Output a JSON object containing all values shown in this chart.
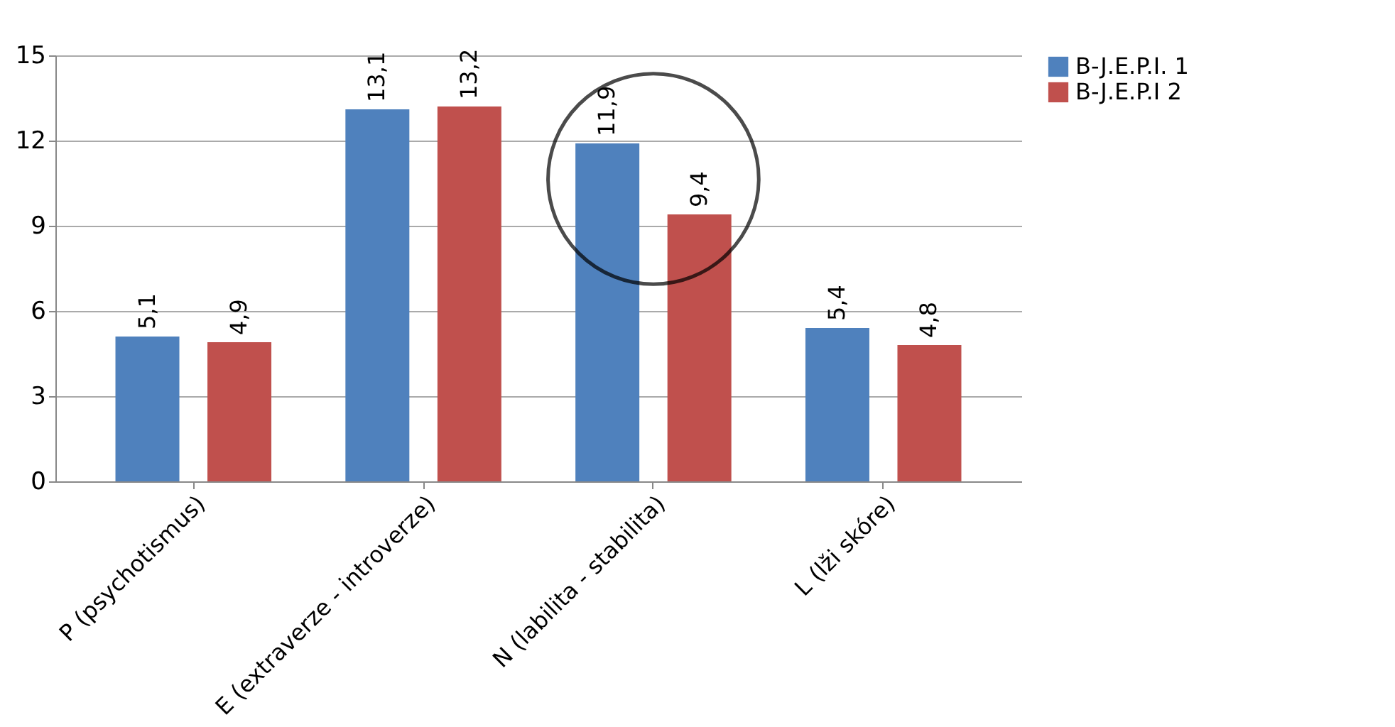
{
  "chart_data": {
    "type": "bar",
    "categories": [
      "P (psychotismus)",
      "E (extraverze - introverze)",
      "N (labilita - stabilita)",
      "L (lži skóre)"
    ],
    "series": [
      {
        "name": "B-J.E.P.I. 1",
        "color": "#4f81bd",
        "values": [
          5.1,
          13.1,
          11.9,
          5.4
        ],
        "value_labels": [
          "5,1",
          "13,1",
          "11,9",
          "5,4"
        ]
      },
      {
        "name": "B-J.E.P.I  2",
        "color": "#c0504d",
        "values": [
          4.9,
          13.2,
          9.4,
          4.8
        ],
        "value_labels": [
          "4,9",
          "13,2",
          "9,4",
          "4,8"
        ]
      }
    ],
    "ylim": [
      0,
      15
    ],
    "yticks": [
      0,
      3,
      6,
      9,
      12,
      15
    ],
    "grid": "y",
    "legend": "right"
  }
}
